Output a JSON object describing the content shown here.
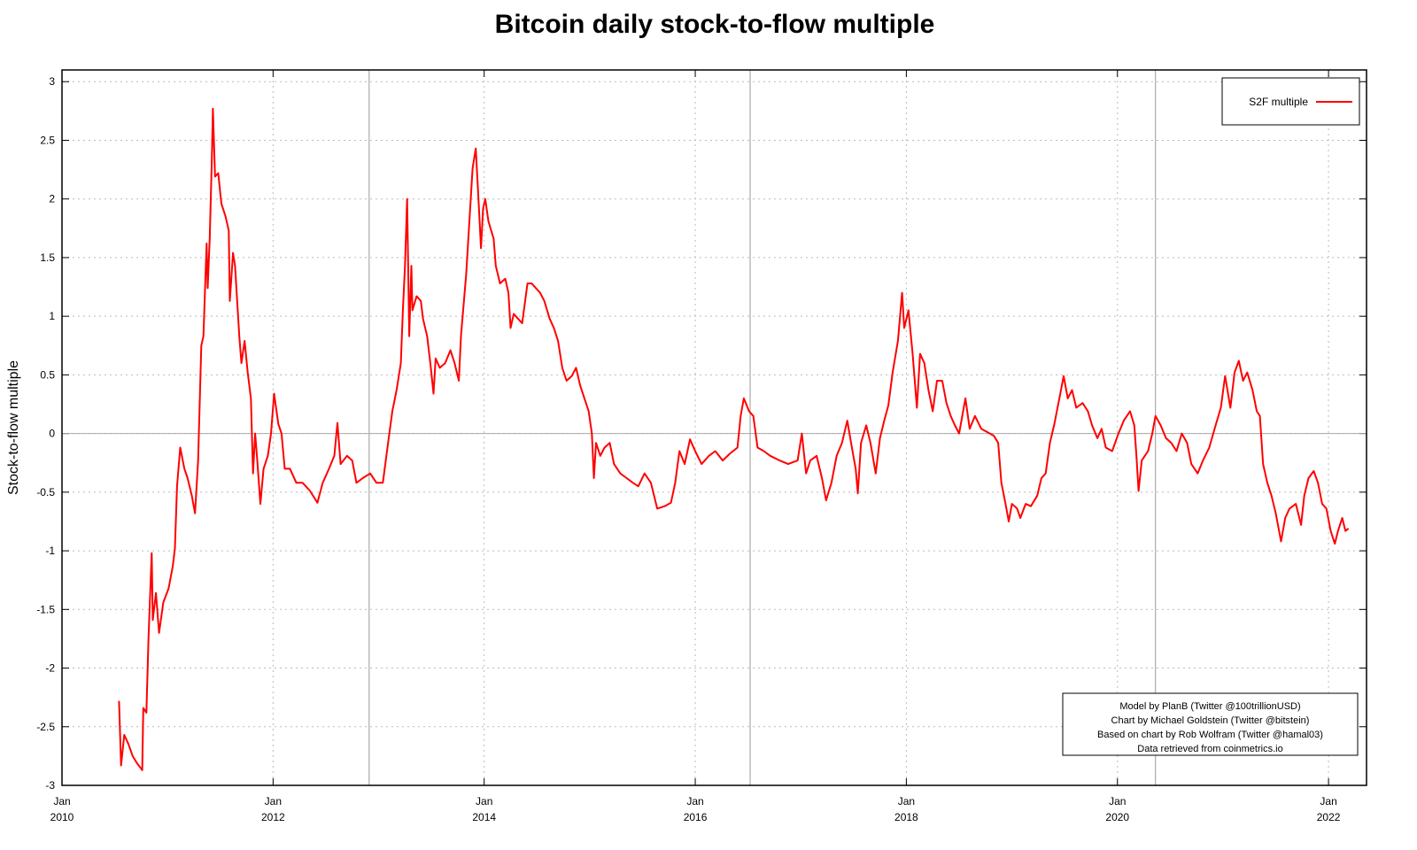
{
  "chart_data": {
    "type": "line",
    "title": "Bitcoin daily stock-to-flow multiple",
    "y_label": "Stock-to-flow multiple",
    "xlim": [
      2010,
      2022.36
    ],
    "ylim": [
      -3,
      3.1
    ],
    "xticks": [
      {
        "value": 2010,
        "label": "Jan\n2010"
      },
      {
        "value": 2012,
        "label": "Jan\n2012"
      },
      {
        "value": 2014,
        "label": "Jan\n2014"
      },
      {
        "value": 2016,
        "label": "Jan\n2016"
      },
      {
        "value": 2018,
        "label": "Jan\n2018"
      },
      {
        "value": 2020,
        "label": "Jan\n2020"
      },
      {
        "value": 2022,
        "label": "Jan\n2022"
      }
    ],
    "yticks": [
      -3,
      -2.5,
      -2,
      -1.5,
      -1,
      -0.5,
      0,
      0.5,
      1,
      1.5,
      2,
      2.5,
      3
    ],
    "grid": true,
    "zero_line": true,
    "vlines": [
      2012.91,
      2016.52,
      2020.36
    ],
    "legend": "top-right",
    "notes": [
      "Model by PlanB (Twitter @100trillionUSD)",
      "Chart by Michael Goldstein (Twitter @bitstein)",
      "Based on chart by Rob Wolfram (Twitter @hamal03)",
      "Data retrieved from coinmetrics.io"
    ],
    "x": [
      2010.54,
      2010.56,
      2010.59,
      2010.63,
      2010.67,
      2010.71,
      2010.76,
      2010.77,
      2010.8,
      2010.82,
      2010.85,
      2010.86,
      2010.89,
      2010.92,
      2010.96,
      2011.01,
      2011.05,
      2011.07,
      2011.09,
      2011.12,
      2011.16,
      2011.19,
      2011.23,
      2011.26,
      2011.29,
      2011.32,
      2011.34,
      2011.37,
      2011.38,
      2011.4,
      2011.42,
      2011.43,
      2011.45,
      2011.48,
      2011.51,
      2011.55,
      2011.58,
      2011.59,
      2011.62,
      2011.64,
      2011.68,
      2011.7,
      2011.73,
      2011.76,
      2011.79,
      2011.81,
      2011.83,
      2011.85,
      2011.88,
      2011.91,
      2011.95,
      2011.98,
      2012.01,
      2012.05,
      2012.08,
      2012.11,
      2012.16,
      2012.22,
      2012.28,
      2012.35,
      2012.42,
      2012.47,
      2012.53,
      2012.58,
      2012.61,
      2012.64,
      2012.7,
      2012.75,
      2012.79,
      2012.85,
      2012.92,
      2012.98,
      2013.04,
      2013.09,
      2013.13,
      2013.17,
      2013.21,
      2013.23,
      2013.25,
      2013.27,
      2013.29,
      2013.31,
      2013.32,
      2013.36,
      2013.4,
      2013.42,
      2013.46,
      2013.49,
      2013.52,
      2013.54,
      2013.58,
      2013.63,
      2013.68,
      2013.72,
      2013.76,
      2013.78,
      2013.83,
      2013.86,
      2013.89,
      2013.92,
      2013.94,
      2013.97,
      2013.99,
      2014.01,
      2014.04,
      2014.09,
      2014.11,
      2014.15,
      2014.2,
      2014.23,
      2014.25,
      2014.28,
      2014.32,
      2014.36,
      2014.41,
      2014.45,
      2014.49,
      2014.53,
      2014.57,
      2014.62,
      2014.66,
      2014.7,
      2014.74,
      2014.78,
      2014.83,
      2014.87,
      2014.91,
      2014.95,
      2014.99,
      2015.02,
      2015.04,
      2015.06,
      2015.1,
      2015.14,
      2015.19,
      2015.23,
      2015.29,
      2015.35,
      2015.41,
      2015.46,
      2015.52,
      2015.58,
      2015.64,
      2015.71,
      2015.77,
      2015.81,
      2015.85,
      2015.9,
      2015.95,
      2016.0,
      2016.06,
      2016.13,
      2016.19,
      2016.26,
      2016.33,
      2016.4,
      2016.43,
      2016.46,
      2016.51,
      2016.55,
      2016.59,
      2016.65,
      2016.71,
      2016.8,
      2016.88,
      2016.97,
      2017.01,
      2017.05,
      2017.09,
      2017.15,
      2017.2,
      2017.24,
      2017.29,
      2017.34,
      2017.39,
      2017.44,
      2017.49,
      2017.52,
      2017.54,
      2017.57,
      2017.62,
      2017.66,
      2017.71,
      2017.75,
      2017.79,
      2017.83,
      2017.87,
      2017.92,
      2017.96,
      2017.98,
      2018.02,
      2018.06,
      2018.1,
      2018.13,
      2018.17,
      2018.21,
      2018.25,
      2018.29,
      2018.34,
      2018.38,
      2018.42,
      2018.46,
      2018.5,
      2018.56,
      2018.6,
      2018.65,
      2018.71,
      2018.77,
      2018.83,
      2018.87,
      2018.9,
      2018.94,
      2018.97,
      2019.0,
      2019.05,
      2019.08,
      2019.13,
      2019.18,
      2019.24,
      2019.28,
      2019.32,
      2019.36,
      2019.4,
      2019.45,
      2019.49,
      2019.53,
      2019.57,
      2019.61,
      2019.67,
      2019.72,
      2019.76,
      2019.81,
      2019.85,
      2019.89,
      2019.95,
      2020.01,
      2020.06,
      2020.12,
      2020.16,
      2020.18,
      2020.2,
      2020.23,
      2020.29,
      2020.33,
      2020.36,
      2020.41,
      2020.46,
      2020.51,
      2020.56,
      2020.61,
      2020.66,
      2020.7,
      2020.76,
      2020.81,
      2020.87,
      2020.93,
      2020.98,
      2021.02,
      2021.07,
      2021.11,
      2021.15,
      2021.19,
      2021.23,
      2021.28,
      2021.32,
      2021.35,
      2021.38,
      2021.42,
      2021.46,
      2021.5,
      2021.55,
      2021.59,
      2021.63,
      2021.69,
      2021.74,
      2021.77,
      2021.81,
      2021.86,
      2021.9,
      2021.94,
      2021.98,
      2022.02,
      2022.06,
      2022.09,
      2022.13,
      2022.16,
      2022.19
    ],
    "series": [
      {
        "name": "S2F multiple",
        "color": "#ff0000",
        "values": [
          -2.28,
          -2.83,
          -2.57,
          -2.65,
          -2.75,
          -2.81,
          -2.87,
          -2.34,
          -2.38,
          -1.74,
          -1.02,
          -1.59,
          -1.36,
          -1.7,
          -1.44,
          -1.32,
          -1.13,
          -0.98,
          -0.45,
          -0.12,
          -0.3,
          -0.38,
          -0.53,
          -0.68,
          -0.23,
          0.75,
          0.83,
          1.62,
          1.24,
          1.66,
          2.34,
          2.77,
          2.19,
          2.22,
          1.96,
          1.85,
          1.73,
          1.13,
          1.54,
          1.43,
          0.83,
          0.6,
          0.79,
          0.52,
          0.3,
          -0.34,
          0,
          -0.23,
          -0.6,
          -0.3,
          -0.19,
          0,
          0.34,
          0.08,
          0,
          -0.3,
          -0.3,
          -0.42,
          -0.42,
          -0.49,
          -0.59,
          -0.42,
          -0.3,
          -0.19,
          0.09,
          -0.26,
          -0.19,
          -0.23,
          -0.42,
          -0.38,
          -0.34,
          -0.42,
          -0.42,
          -0.08,
          0.19,
          0.37,
          0.6,
          1.05,
          1.43,
          2.0,
          0.83,
          1.43,
          1.05,
          1.17,
          1.13,
          0.98,
          0.83,
          0.6,
          0.34,
          0.64,
          0.56,
          0.6,
          0.71,
          0.6,
          0.45,
          0.83,
          1.36,
          1.81,
          2.26,
          2.43,
          2.11,
          1.58,
          1.92,
          2.0,
          1.81,
          1.66,
          1.43,
          1.28,
          1.32,
          1.2,
          0.9,
          1.02,
          0.98,
          0.94,
          1.28,
          1.28,
          1.24,
          1.2,
          1.13,
          0.98,
          0.9,
          0.79,
          0.56,
          0.45,
          0.49,
          0.56,
          0.41,
          0.3,
          0.19,
          0,
          -0.38,
          -0.08,
          -0.19,
          -0.12,
          -0.08,
          -0.26,
          -0.34,
          -0.38,
          -0.42,
          -0.45,
          -0.34,
          -0.42,
          -0.64,
          -0.62,
          -0.59,
          -0.42,
          -0.15,
          -0.26,
          -0.05,
          -0.15,
          -0.26,
          -0.19,
          -0.15,
          -0.23,
          -0.17,
          -0.12,
          0.15,
          0.3,
          0.19,
          0.15,
          -0.12,
          -0.15,
          -0.19,
          -0.23,
          -0.26,
          -0.23,
          0,
          -0.34,
          -0.23,
          -0.19,
          -0.38,
          -0.57,
          -0.42,
          -0.19,
          -0.08,
          0.11,
          -0.15,
          -0.3,
          -0.51,
          -0.08,
          0.07,
          -0.08,
          -0.34,
          -0.04,
          0.11,
          0.24,
          0.52,
          0.79,
          1.2,
          0.9,
          1.05,
          0.68,
          0.22,
          0.68,
          0.6,
          0.37,
          0.19,
          0.45,
          0.45,
          0.26,
          0.15,
          0.07,
          0,
          0.3,
          0.04,
          0.15,
          0.04,
          0.01,
          -0.02,
          -0.08,
          -0.42,
          -0.6,
          -0.75,
          -0.6,
          -0.64,
          -0.72,
          -0.6,
          -0.62,
          -0.53,
          -0.38,
          -0.34,
          -0.08,
          0.07,
          0.3,
          0.49,
          0.3,
          0.37,
          0.22,
          0.26,
          0.19,
          0.07,
          -0.04,
          0.04,
          -0.12,
          -0.15,
          0,
          0.11,
          0.19,
          0.07,
          -0.19,
          -0.49,
          -0.23,
          -0.15,
          0,
          0.15,
          0.07,
          -0.04,
          -0.08,
          -0.15,
          0,
          -0.08,
          -0.26,
          -0.34,
          -0.23,
          -0.12,
          0.07,
          0.22,
          0.49,
          0.22,
          0.52,
          0.62,
          0.45,
          0.52,
          0.37,
          0.19,
          0.15,
          -0.26,
          -0.42,
          -0.53,
          -0.68,
          -0.92,
          -0.72,
          -0.64,
          -0.6,
          -0.78,
          -0.53,
          -0.38,
          -0.32,
          -0.42,
          -0.6,
          -0.64,
          -0.83,
          -0.94,
          -0.83,
          -0.72,
          -0.83,
          -0.81
        ]
      }
    ]
  }
}
